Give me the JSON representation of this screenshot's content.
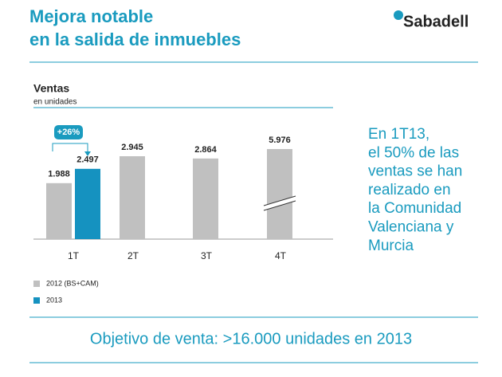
{
  "header": {
    "title_lines": [
      "Mejora notable",
      "en la salida de inmuebles"
    ],
    "logo": "Sabadell"
  },
  "chart_data": {
    "type": "bar",
    "title": "Ventas",
    "subtitle": "en unidades",
    "categories": [
      "1T",
      "2T",
      "3T",
      "4T"
    ],
    "series": [
      {
        "name": "2012 (BS+CAM)",
        "color": "#c0c0c0",
        "values": [
          1988,
          2945,
          2864,
          5976
        ],
        "value_labels": [
          "1.988",
          "2.945",
          "2.864",
          "5.976"
        ]
      },
      {
        "name": "2013",
        "color": "#1592c0",
        "values": [
          2497,
          null,
          null,
          null
        ],
        "value_labels": [
          "2.497",
          null,
          null,
          null
        ]
      }
    ],
    "ylim": [
      0,
      3200
    ],
    "axis_break": true,
    "annotation": "+26%"
  },
  "note_lines": [
    "En 1T13,",
    "el 50% de las",
    "ventas se han",
    "realizado en",
    "la Comunidad",
    "Valenciana y",
    "Murcia"
  ],
  "footer": "Objetivo de venta: >16.000 unidades en 2013"
}
